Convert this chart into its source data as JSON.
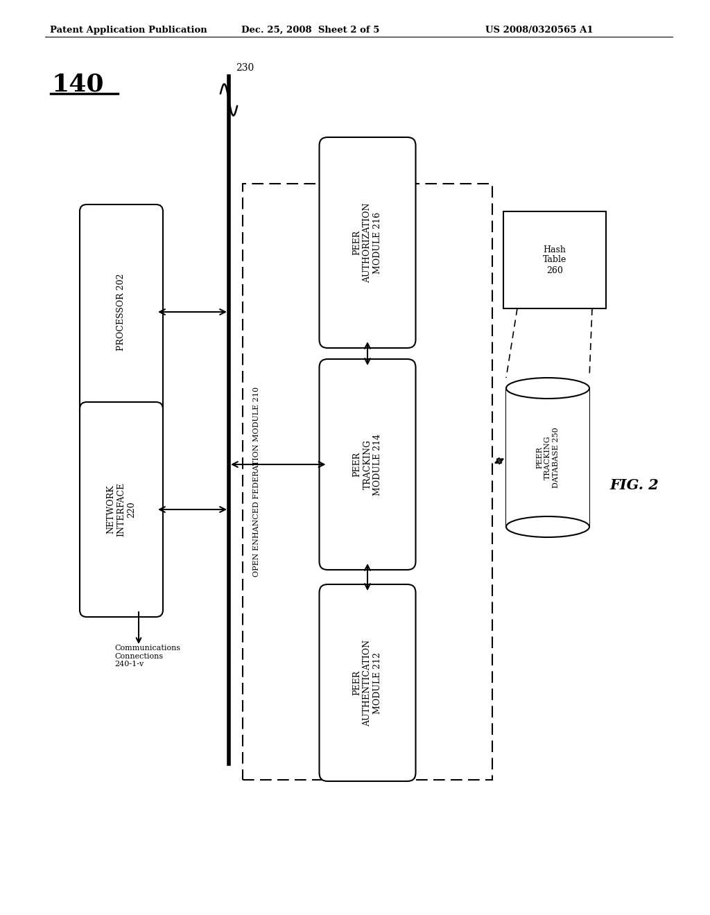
{
  "bg_color": "#ffffff",
  "text_color": "#000000",
  "header_left": "Patent Application Publication",
  "header_center": "Dec. 25, 2008  Sheet 2 of 5",
  "header_right": "US 2008/0320565 A1",
  "fig_label": "140",
  "fig_number": "FIG. 2",
  "label_230": "230",
  "processor_label": "PROCESSOR 202",
  "network_label": "NETWORK\nINTERFACE\n220",
  "comm_label": "Communications\nConnections\n240-1-v",
  "oef_label": "OPEN ENHANCED FEDERATION MODULE 210",
  "auth_module_label": "PEER\nAUTHORIZATION\nMODULE 216",
  "tracking_module_label": "PEER\nTRACKING\nMODULE 214",
  "peer_auth_label": "PEER\nAUTHENTICATION\nMODULE 212",
  "db_label": "PEER\nTRACKING\nDATABASE 250",
  "hash_label": "Hash\nTable\n260"
}
